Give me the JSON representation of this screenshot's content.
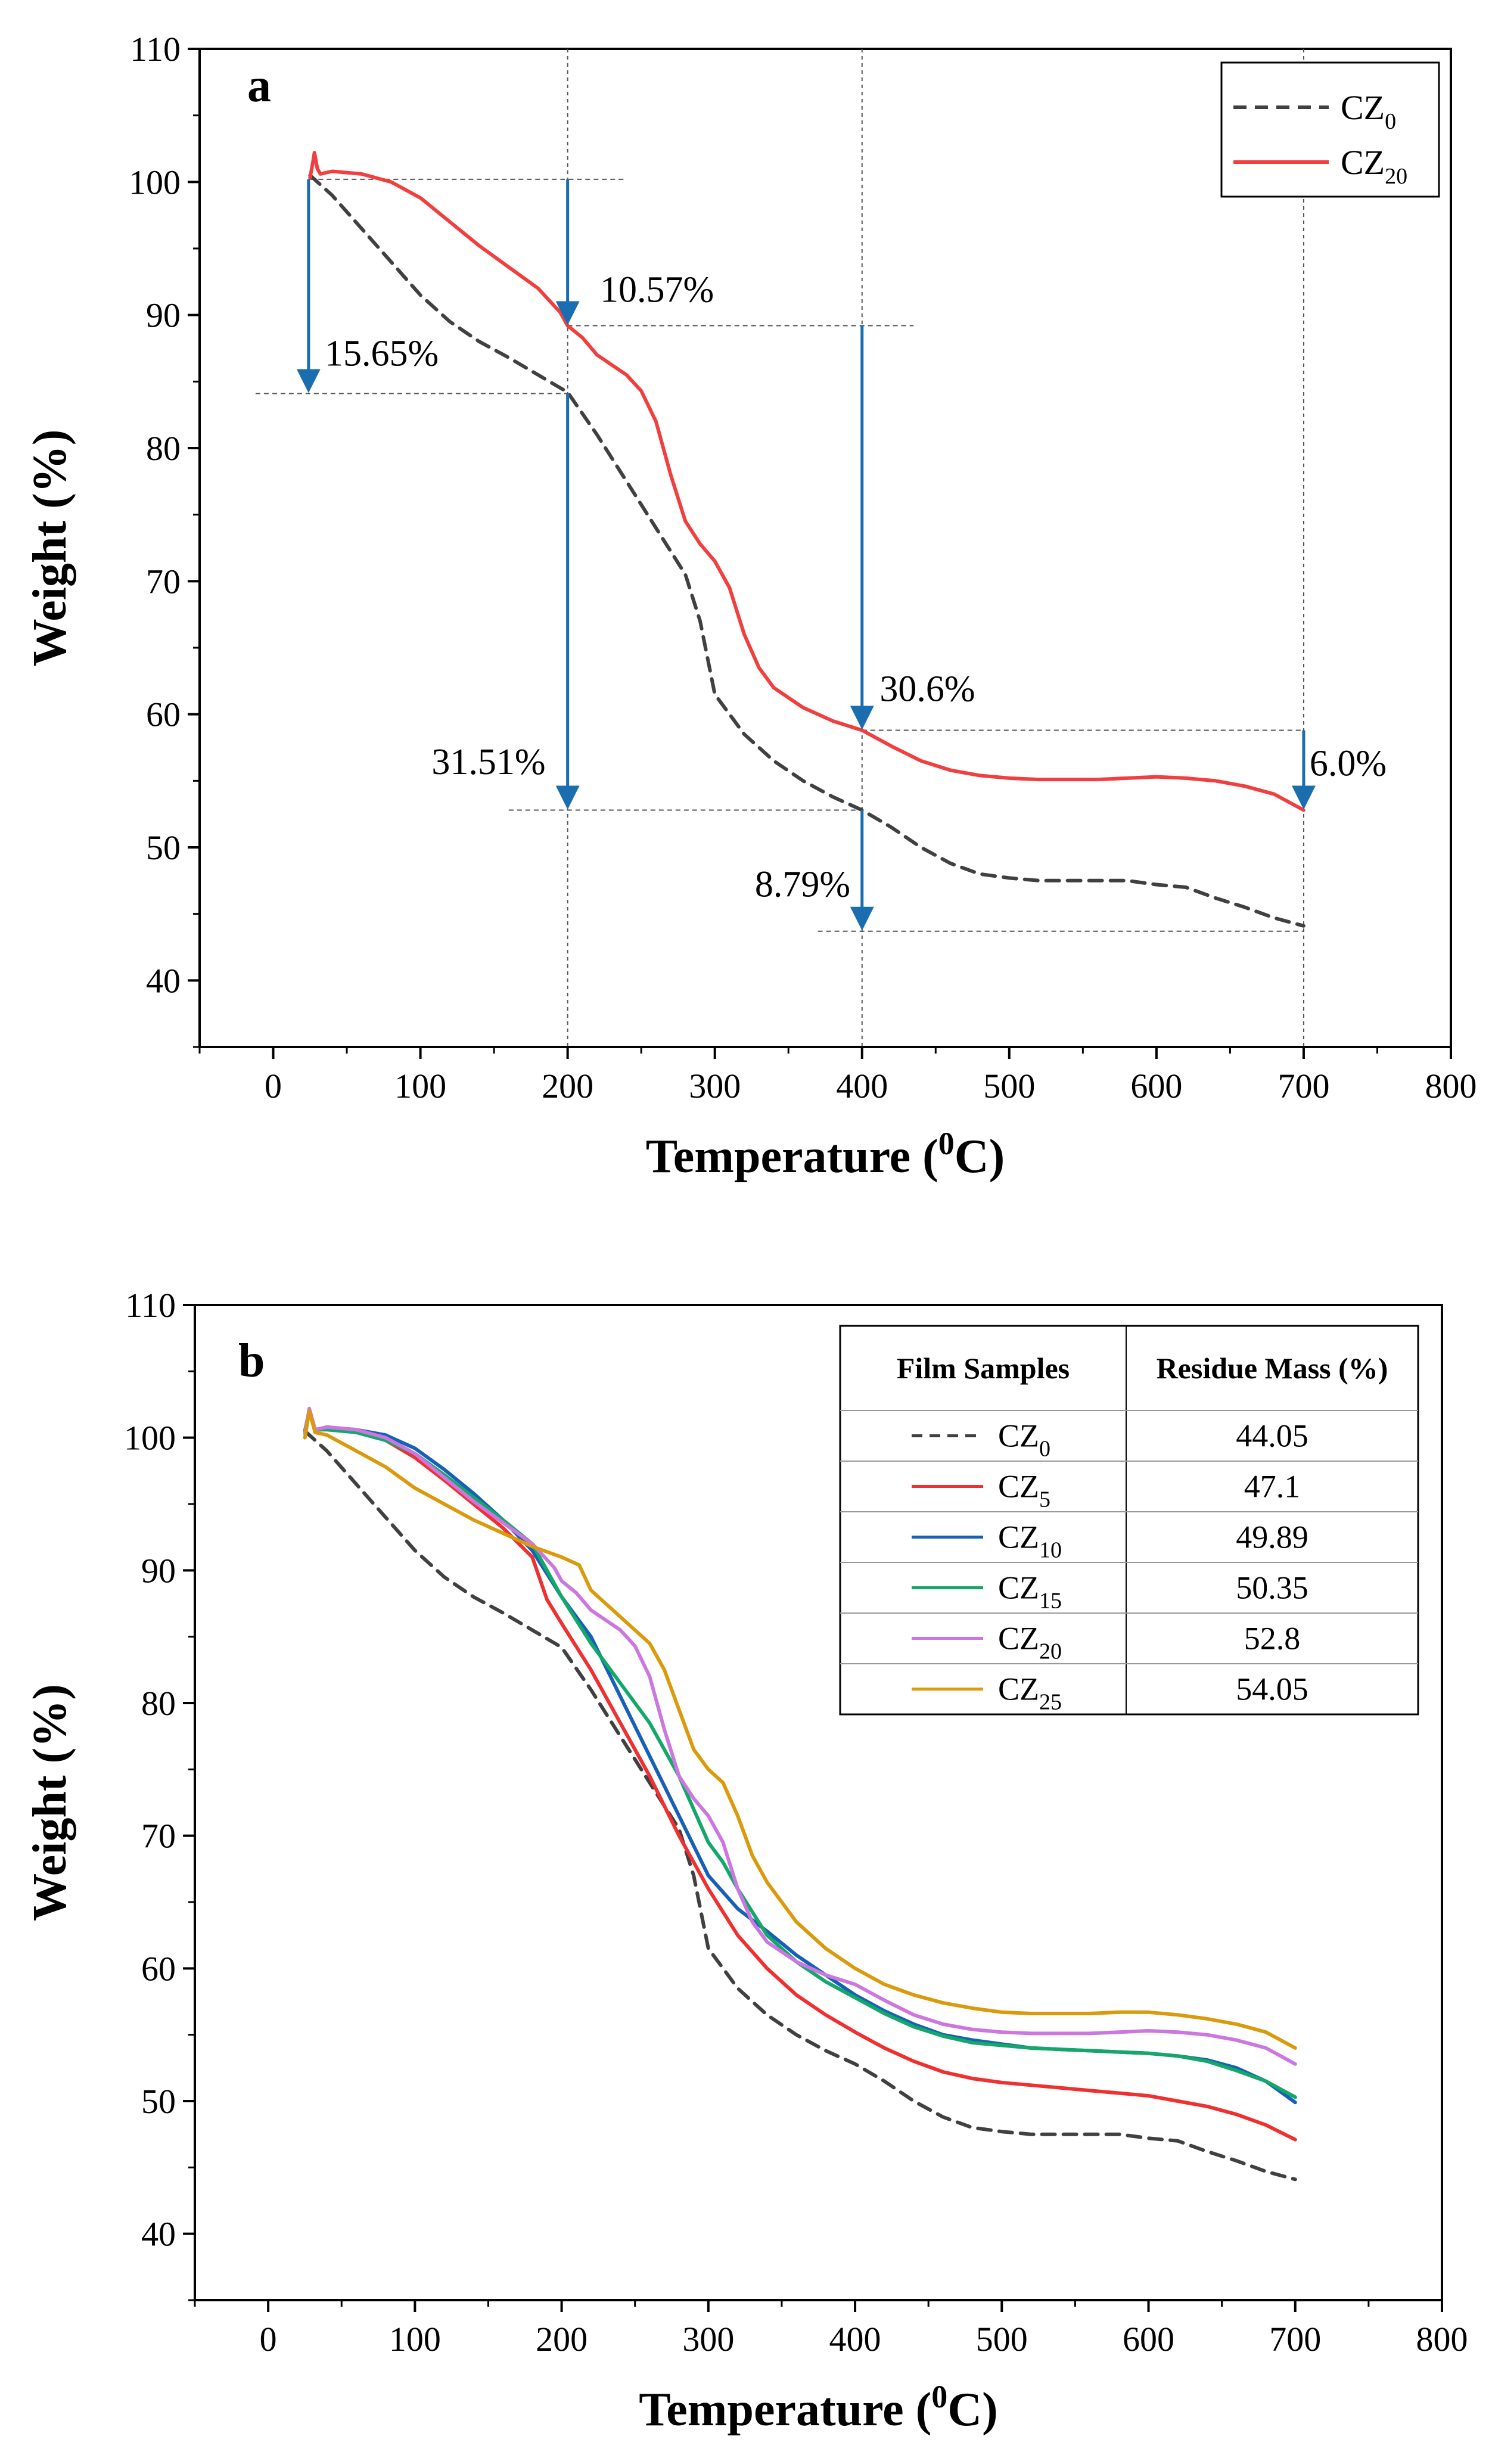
{
  "figure": {
    "colors": {
      "CZ0": "#404040",
      "CZ5": "#f03030",
      "CZ10": "#1760b8",
      "CZ15": "#13a86a",
      "CZ20": "#cc77e0",
      "CZ25": "#d99a0b",
      "CZ20a": "#f13f3f",
      "arrow": "#1a6eb0",
      "guide": "#555555"
    }
  },
  "chart_data": [
    {
      "type": "line",
      "panel": "a",
      "xlabel": "Temperature (0C)",
      "xlabel_main": "Temperature (",
      "xlabel_sup": "0",
      "xlabel_end": "C)",
      "ylabel": "Weight (%)",
      "xlim": [
        -50,
        800
      ],
      "ylim": [
        35,
        110
      ],
      "xticks": [
        0,
        100,
        200,
        300,
        400,
        500,
        600,
        700,
        800
      ],
      "yticks": [
        40,
        50,
        60,
        70,
        80,
        90,
        100,
        110
      ],
      "legend": [
        {
          "name": "CZ",
          "sub": "0",
          "style": "dashed"
        },
        {
          "name": "CZ",
          "sub": "20",
          "style": "solid"
        }
      ],
      "legend_position": "top-right",
      "series": [
        {
          "name": "CZ0",
          "style": "dashed",
          "x": [
            25,
            40,
            60,
            80,
            100,
            120,
            140,
            160,
            180,
            200,
            220,
            240,
            260,
            280,
            290,
            300,
            320,
            340,
            360,
            380,
            400,
            420,
            440,
            460,
            480,
            500,
            520,
            540,
            560,
            580,
            600,
            620,
            640,
            660,
            680,
            700
          ],
          "y": [
            100.5,
            99.0,
            96.5,
            94.0,
            91.5,
            89.5,
            88.0,
            86.8,
            85.5,
            84.2,
            81.0,
            77.5,
            74.0,
            70.5,
            67.0,
            61.5,
            58.5,
            56.5,
            55.0,
            53.8,
            52.8,
            51.5,
            50.0,
            48.8,
            48.0,
            47.7,
            47.5,
            47.5,
            47.5,
            47.5,
            47.2,
            47.0,
            46.2,
            45.5,
            44.7,
            44.1
          ]
        },
        {
          "name": "CZ20",
          "style": "solid",
          "x": [
            25,
            27,
            28,
            30,
            32,
            40,
            60,
            80,
            100,
            120,
            140,
            160,
            180,
            195,
            200,
            210,
            220,
            240,
            250,
            260,
            270,
            280,
            290,
            300,
            310,
            320,
            330,
            340,
            360,
            380,
            400,
            420,
            440,
            460,
            480,
            500,
            520,
            540,
            560,
            580,
            600,
            620,
            640,
            660,
            680,
            700
          ],
          "y": [
            100.3,
            101.5,
            102.2,
            101.0,
            100.6,
            100.8,
            100.6,
            100.0,
            98.8,
            97.0,
            95.2,
            93.6,
            92.0,
            90.2,
            89.2,
            88.3,
            87.0,
            85.5,
            84.3,
            82.0,
            78.0,
            74.5,
            72.8,
            71.5,
            69.5,
            66.0,
            63.5,
            62.0,
            60.5,
            59.5,
            58.8,
            57.6,
            56.5,
            55.8,
            55.4,
            55.2,
            55.1,
            55.1,
            55.1,
            55.2,
            55.3,
            55.2,
            55.0,
            54.6,
            54.0,
            52.8
          ]
        }
      ],
      "guides": [
        {
          "x1": 25,
          "x2": 240,
          "y": 100.2
        },
        {
          "x1": -12,
          "x2": 200,
          "y": 84.1
        },
        {
          "x1": 200,
          "x2": 435,
          "y": 89.2
        },
        {
          "x1": 160,
          "x2": 400,
          "y": 52.8
        },
        {
          "x1": 400,
          "x2": 700,
          "y": 58.8
        },
        {
          "x1": 370,
          "x2": 700,
          "y": 43.7
        }
      ],
      "vlines": [
        200,
        400,
        700
      ],
      "arrows": [
        {
          "x": 24,
          "y1": 100.2,
          "y2": 84.1
        },
        {
          "x": 200,
          "y1": 100.2,
          "y2": 89.2
        },
        {
          "x": 200,
          "y1": 84.1,
          "y2": 52.8
        },
        {
          "x": 400,
          "y1": 89.2,
          "y2": 58.8
        },
        {
          "x": 400,
          "y1": 52.8,
          "y2": 43.7
        },
        {
          "x": 700,
          "y1": 58.8,
          "y2": 52.8
        }
      ],
      "annotations": [
        {
          "text": "15.65%",
          "x": 35,
          "y": 86.2,
          "anchor": "start"
        },
        {
          "text": "10.57%",
          "x": 222,
          "y": 91.0,
          "anchor": "start"
        },
        {
          "text": "31.51%",
          "x": 185,
          "y": 55.5,
          "anchor": "end"
        },
        {
          "text": "30.6%",
          "x": 412,
          "y": 61.0,
          "anchor": "start"
        },
        {
          "text": "8.79%",
          "x": 392,
          "y": 46.3,
          "anchor": "end"
        },
        {
          "text": "6.0%",
          "x": 704,
          "y": 55.4,
          "anchor": "start"
        }
      ]
    },
    {
      "type": "line",
      "panel": "b",
      "xlabel": "Temperature (0C)",
      "xlabel_main": "Temperature (",
      "xlabel_sup": "0",
      "xlabel_end": "C)",
      "ylabel": "Weight (%)",
      "xlim": [
        -50,
        800
      ],
      "ylim": [
        35,
        110
      ],
      "xticks": [
        0,
        100,
        200,
        300,
        400,
        500,
        600,
        700,
        800
      ],
      "yticks": [
        40,
        50,
        60,
        70,
        80,
        90,
        100,
        110
      ],
      "table": {
        "header": [
          "Film Samples",
          "Residue Mass (%)"
        ],
        "rows": [
          {
            "name": "CZ",
            "sub": "0",
            "value": "44.05",
            "style": "dashed",
            "key": "CZ0"
          },
          {
            "name": "CZ",
            "sub": "5",
            "value": "47.1",
            "style": "solid",
            "key": "CZ5"
          },
          {
            "name": "CZ",
            "sub": "10",
            "value": "49.89",
            "style": "solid",
            "key": "CZ10"
          },
          {
            "name": "CZ",
            "sub": "15",
            "value": "50.35",
            "style": "solid",
            "key": "CZ15"
          },
          {
            "name": "CZ",
            "sub": "20",
            "value": "52.8",
            "style": "solid",
            "key": "CZ20"
          },
          {
            "name": "CZ",
            "sub": "25",
            "value": "54.05",
            "style": "solid",
            "key": "CZ25"
          }
        ]
      },
      "series": [
        {
          "name": "CZ0",
          "style": "dashed",
          "x": [
            25,
            40,
            60,
            80,
            100,
            120,
            140,
            160,
            180,
            200,
            220,
            240,
            260,
            280,
            290,
            300,
            320,
            340,
            360,
            380,
            400,
            420,
            440,
            460,
            480,
            500,
            520,
            540,
            560,
            580,
            600,
            620,
            640,
            660,
            680,
            700
          ],
          "y": [
            100.5,
            99.0,
            96.5,
            94.0,
            91.5,
            89.5,
            88.0,
            86.8,
            85.5,
            84.2,
            81.0,
            77.5,
            74.0,
            70.5,
            67.0,
            61.5,
            58.5,
            56.5,
            55.0,
            53.8,
            52.8,
            51.5,
            50.0,
            48.8,
            48.0,
            47.7,
            47.5,
            47.5,
            47.5,
            47.5,
            47.2,
            47.0,
            46.2,
            45.5,
            44.7,
            44.1
          ]
        },
        {
          "name": "CZ5",
          "style": "solid",
          "x": [
            25,
            28,
            32,
            40,
            60,
            80,
            100,
            120,
            140,
            160,
            180,
            190,
            200,
            220,
            240,
            260,
            280,
            300,
            320,
            340,
            360,
            380,
            400,
            420,
            440,
            460,
            480,
            500,
            520,
            540,
            560,
            580,
            600,
            620,
            640,
            660,
            680,
            700
          ],
          "y": [
            100.5,
            102.0,
            100.6,
            100.7,
            100.5,
            99.8,
            98.5,
            96.8,
            95.0,
            93.2,
            91.0,
            87.8,
            86.0,
            82.5,
            78.5,
            74.5,
            70.0,
            66.0,
            62.5,
            60.0,
            58.0,
            56.5,
            55.2,
            54.0,
            53.0,
            52.2,
            51.7,
            51.4,
            51.2,
            51.0,
            50.8,
            50.6,
            50.4,
            50.0,
            49.6,
            49.0,
            48.2,
            47.1
          ]
        },
        {
          "name": "CZ10",
          "style": "solid",
          "x": [
            25,
            28,
            32,
            40,
            60,
            80,
            100,
            120,
            140,
            160,
            180,
            200,
            220,
            240,
            260,
            280,
            300,
            320,
            340,
            360,
            380,
            400,
            420,
            440,
            460,
            480,
            500,
            520,
            540,
            560,
            580,
            600,
            620,
            640,
            660,
            680,
            700
          ],
          "y": [
            100.5,
            102.0,
            100.6,
            100.8,
            100.6,
            100.2,
            99.2,
            97.6,
            95.8,
            93.8,
            91.5,
            88.0,
            85.0,
            80.5,
            76.0,
            71.5,
            67.0,
            64.5,
            62.8,
            61.0,
            59.5,
            58.0,
            56.8,
            55.8,
            55.0,
            54.6,
            54.3,
            54.0,
            53.9,
            53.8,
            53.7,
            53.6,
            53.4,
            53.1,
            52.5,
            51.5,
            49.9
          ]
        },
        {
          "name": "CZ15",
          "style": "solid",
          "x": [
            25,
            28,
            32,
            40,
            60,
            80,
            100,
            120,
            140,
            160,
            180,
            200,
            220,
            240,
            260,
            280,
            300,
            310,
            320,
            340,
            360,
            380,
            400,
            420,
            440,
            460,
            480,
            500,
            520,
            540,
            560,
            580,
            600,
            620,
            640,
            660,
            680,
            700
          ],
          "y": [
            100.5,
            102.0,
            100.6,
            100.6,
            100.4,
            99.8,
            98.8,
            97.2,
            95.5,
            93.8,
            92.0,
            88.0,
            84.5,
            81.5,
            78.5,
            74.5,
            69.5,
            68.0,
            66.0,
            62.5,
            60.5,
            59.0,
            57.8,
            56.6,
            55.6,
            54.9,
            54.4,
            54.2,
            54.0,
            53.9,
            53.8,
            53.7,
            53.6,
            53.4,
            53.0,
            52.3,
            51.5,
            50.3
          ]
        },
        {
          "name": "CZ20",
          "style": "solid",
          "x": [
            25,
            28,
            32,
            40,
            60,
            80,
            100,
            120,
            140,
            160,
            180,
            195,
            200,
            210,
            220,
            240,
            250,
            260,
            270,
            280,
            290,
            300,
            310,
            320,
            330,
            340,
            360,
            380,
            400,
            420,
            440,
            460,
            480,
            500,
            520,
            540,
            560,
            580,
            600,
            620,
            640,
            660,
            680,
            700
          ],
          "y": [
            100.3,
            102.2,
            100.6,
            100.8,
            100.6,
            100.0,
            98.8,
            97.0,
            95.2,
            93.6,
            92.0,
            90.2,
            89.2,
            88.3,
            87.0,
            85.5,
            84.3,
            82.0,
            78.0,
            74.5,
            72.8,
            71.5,
            69.5,
            66.0,
            63.5,
            62.0,
            60.5,
            59.5,
            58.8,
            57.6,
            56.5,
            55.8,
            55.4,
            55.2,
            55.1,
            55.1,
            55.1,
            55.2,
            55.3,
            55.2,
            55.0,
            54.6,
            54.0,
            52.8
          ]
        },
        {
          "name": "CZ25",
          "style": "solid",
          "x": [
            25,
            28,
            32,
            40,
            60,
            80,
            100,
            120,
            140,
            160,
            180,
            200,
            212,
            220,
            240,
            260,
            270,
            280,
            290,
            300,
            310,
            320,
            330,
            340,
            360,
            380,
            400,
            420,
            440,
            460,
            480,
            500,
            520,
            540,
            560,
            580,
            600,
            620,
            640,
            660,
            680,
            700
          ],
          "y": [
            100.0,
            102.0,
            100.4,
            100.2,
            99.0,
            97.8,
            96.2,
            95.0,
            93.8,
            92.8,
            91.8,
            91.0,
            90.4,
            88.5,
            86.5,
            84.5,
            82.5,
            79.5,
            76.5,
            75.0,
            74.0,
            71.5,
            68.5,
            66.5,
            63.5,
            61.5,
            60.0,
            58.8,
            58.0,
            57.4,
            57.0,
            56.7,
            56.6,
            56.6,
            56.6,
            56.7,
            56.7,
            56.5,
            56.2,
            55.8,
            55.2,
            54.0
          ]
        }
      ]
    }
  ]
}
